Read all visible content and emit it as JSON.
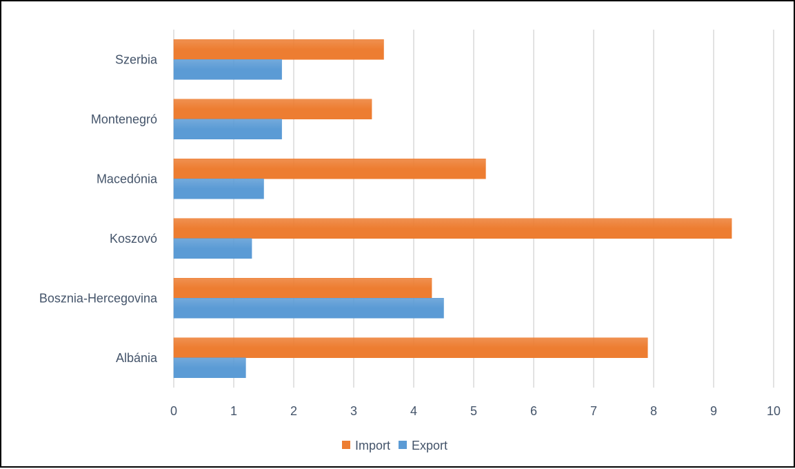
{
  "chart_data": {
    "type": "bar",
    "orientation": "horizontal",
    "categories": [
      "Szerbia",
      "Montenegró",
      "Macedónia",
      "Koszovó",
      "Bosznia-Hercegovina",
      "Albánia"
    ],
    "series": [
      {
        "name": "Import",
        "color": "#ed7d31",
        "values": [
          3.5,
          3.3,
          5.2,
          9.3,
          4.3,
          7.9
        ]
      },
      {
        "name": "Export",
        "color": "#5b9bd5",
        "values": [
          1.8,
          1.8,
          1.5,
          1.3,
          4.5,
          1.2
        ]
      }
    ],
    "x_ticks": [
      "0",
      "1",
      "2",
      "3",
      "4",
      "5",
      "6",
      "7",
      "8",
      "9",
      "10"
    ],
    "xlim": [
      0,
      10
    ],
    "grid": true,
    "legend_position": "bottom",
    "title": "",
    "xlabel": "",
    "ylabel": ""
  }
}
